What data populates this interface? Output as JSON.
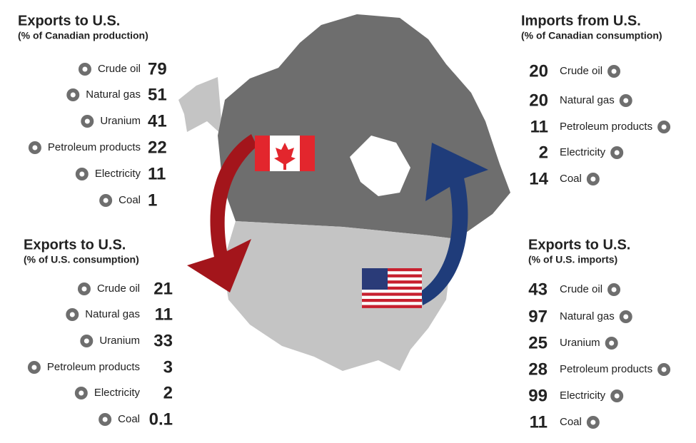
{
  "panels": [
    {
      "title": "Exports to U.S.",
      "subtitle": "(% of Canadian production)",
      "items": [
        {
          "label": "Crude oil",
          "value": 79
        },
        {
          "label": "Natural gas",
          "value": 51
        },
        {
          "label": "Uranium",
          "value": 41
        },
        {
          "label": "Petroleum products",
          "value": 22
        },
        {
          "label": "Electricity",
          "value": 11
        },
        {
          "label": "Coal",
          "value": 1
        }
      ]
    },
    {
      "title": "Imports from U.S.",
      "subtitle": "(% of Canadian consumption)",
      "items": [
        {
          "label": "Crude oil",
          "value": 20
        },
        {
          "label": "Natural gas",
          "value": 20
        },
        {
          "label": "Petroleum products",
          "value": 11
        },
        {
          "label": "Electricity",
          "value": 2
        },
        {
          "label": "Coal",
          "value": 14
        }
      ]
    },
    {
      "title": "Exports to U.S.",
      "subtitle": "(% of U.S. consumption)",
      "items": [
        {
          "label": "Crude oil",
          "value": 21
        },
        {
          "label": "Natural gas",
          "value": 11
        },
        {
          "label": "Uranium",
          "value": 33
        },
        {
          "label": "Petroleum products",
          "value": 3
        },
        {
          "label": "Electricity",
          "value": 2
        },
        {
          "label": "Coal",
          "value": 0.1
        }
      ]
    },
    {
      "title": "Exports to U.S.",
      "subtitle": "(% of U.S. imports)",
      "items": [
        {
          "label": "Crude oil",
          "value": 43
        },
        {
          "label": "Natural gas",
          "value": 97
        },
        {
          "label": "Uranium",
          "value": 25
        },
        {
          "label": "Petroleum products",
          "value": 28
        },
        {
          "label": "Electricity",
          "value": 99
        },
        {
          "label": "Coal",
          "value": 11
        }
      ]
    }
  ]
}
